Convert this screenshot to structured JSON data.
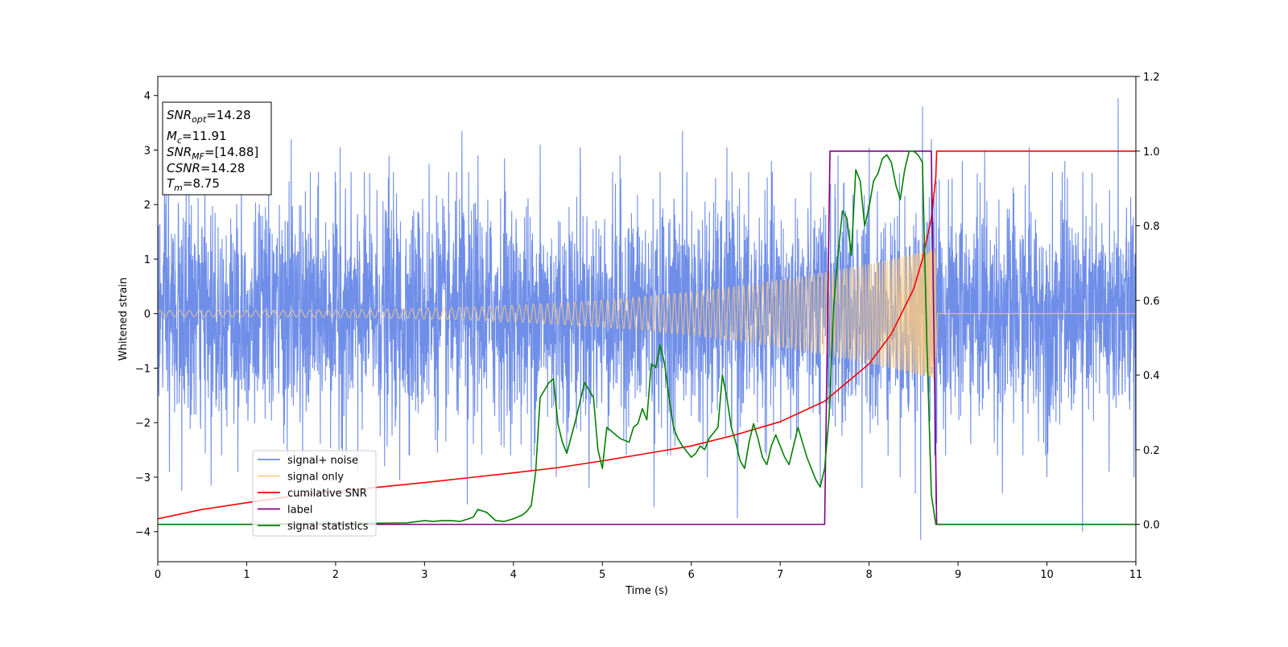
{
  "chart_data": {
    "type": "line",
    "xlabel": "Time (s)",
    "ylabel": "Whitened strain",
    "y2label": "",
    "xlim": [
      0,
      11
    ],
    "ylim": [
      -4.55,
      4.35
    ],
    "y2lim": [
      -0.1,
      1.2
    ],
    "x_ticks": [
      "0",
      "1",
      "2",
      "3",
      "4",
      "5",
      "6",
      "7",
      "8",
      "9",
      "10",
      "11"
    ],
    "y_ticks": [
      "−4",
      "−3",
      "−2",
      "−1",
      "0",
      "1",
      "2",
      "3",
      "4"
    ],
    "y2_ticks": [
      "0.0",
      "0.2",
      "0.4",
      "0.6",
      "0.8",
      "1.0",
      "1.2"
    ],
    "grid": false,
    "legend_position": "lower-left",
    "legend": [
      {
        "label": "signal+ noise",
        "color": "#6f8ee8"
      },
      {
        "label": "signal only",
        "color": "#ffcc80"
      },
      {
        "label": "cumilative SNR",
        "color": "#ff0000"
      },
      {
        "label": "label",
        "color": "#800080"
      },
      {
        "label": "signal statistics",
        "color": "#008000"
      }
    ],
    "info_box": {
      "snr_opt": {
        "sym": "SNR",
        "sub": "opt",
        "value": "=14.28"
      },
      "mc": {
        "sym": "M",
        "sub": "c",
        "value": "=11.91"
      },
      "snr_mf": {
        "sym": "SNR",
        "sub": "MF",
        "value": "=[14.88]"
      },
      "csnr": {
        "sym": "CSNR",
        "sub": "",
        "value": "=14.28"
      },
      "tm": {
        "sym": "T",
        "sub": "m",
        "value": "=8.75"
      }
    },
    "merger_time": 8.75,
    "series": [
      {
        "name": "signal+ noise",
        "axis": "left",
        "color": "#6f8ee8",
        "description_type": "noise",
        "noise_band": [
          -2.0,
          2.0
        ],
        "spikes": [
          [
            0.12,
            2.9
          ],
          [
            0.13,
            -2.9
          ],
          [
            0.27,
            -3.25
          ],
          [
            0.6,
            3.1
          ],
          [
            0.6,
            -3.15
          ],
          [
            0.9,
            -2.9
          ],
          [
            0.94,
            2.8
          ],
          [
            1.5,
            3.2
          ],
          [
            1.63,
            -3.0
          ],
          [
            2.05,
            3.05
          ],
          [
            2.25,
            -2.9
          ],
          [
            2.55,
            -2.8
          ],
          [
            2.6,
            2.9
          ],
          [
            2.72,
            -3.05
          ],
          [
            3.05,
            2.75
          ],
          [
            3.42,
            3.35
          ],
          [
            3.48,
            -3.5
          ],
          [
            3.6,
            2.9
          ],
          [
            3.9,
            2.85
          ],
          [
            4.2,
            -2.9
          ],
          [
            4.3,
            3.1
          ],
          [
            4.48,
            -3.0
          ],
          [
            4.75,
            3.05
          ],
          [
            4.85,
            -3.2
          ],
          [
            5.2,
            2.9
          ],
          [
            5.58,
            -3.55
          ],
          [
            5.9,
            3.35
          ],
          [
            6.18,
            -3.0
          ],
          [
            6.4,
            3.05
          ],
          [
            6.52,
            -3.75
          ],
          [
            6.9,
            2.8
          ],
          [
            7.45,
            -3.15
          ],
          [
            7.65,
            2.9
          ],
          [
            7.92,
            -3.2
          ],
          [
            8.0,
            3.05
          ],
          [
            8.35,
            -3.0
          ],
          [
            8.52,
            -3.3
          ],
          [
            8.6,
            3.8
          ],
          [
            8.58,
            -4.15
          ],
          [
            8.7,
            3.2
          ],
          [
            8.75,
            -3.5
          ],
          [
            9.05,
            2.8
          ],
          [
            9.3,
            3.0
          ],
          [
            9.5,
            -3.3
          ],
          [
            9.8,
            3.05
          ],
          [
            10.0,
            -3.0
          ],
          [
            10.2,
            2.8
          ],
          [
            10.4,
            -4.0
          ],
          [
            10.7,
            -2.9
          ],
          [
            10.8,
            3.95
          ],
          [
            10.98,
            -3.0
          ]
        ]
      },
      {
        "name": "signal only",
        "axis": "left",
        "color": "#ffcc80",
        "description_type": "chirp",
        "amplitude_start": 0.06,
        "amplitude_end": 1.2,
        "t_end": 8.75
      },
      {
        "name": "cumilative SNR",
        "axis": "right",
        "color": "#ff0000",
        "x": [
          0,
          0.5,
          1,
          1.5,
          2,
          2.5,
          3,
          3.5,
          4,
          4.5,
          5,
          5.5,
          6,
          6.5,
          7,
          7.5,
          8,
          8.25,
          8.5,
          8.6,
          8.7,
          8.75,
          8.76,
          9,
          10,
          11
        ],
        "y": [
          0.015,
          0.04,
          0.058,
          0.075,
          0.088,
          0.1,
          0.112,
          0.125,
          0.138,
          0.152,
          0.17,
          0.19,
          0.21,
          0.24,
          0.275,
          0.33,
          0.43,
          0.51,
          0.63,
          0.71,
          0.82,
          0.93,
          1.0,
          1.0,
          1.0,
          1.0
        ]
      },
      {
        "name": "label",
        "axis": "right",
        "color": "#800080",
        "x": [
          0,
          7.5,
          7.56,
          8.7,
          8.76,
          11
        ],
        "y": [
          0,
          0,
          1,
          1,
          0,
          0
        ]
      },
      {
        "name": "signal statistics",
        "axis": "right",
        "color": "#008000",
        "x": [
          0,
          0.5,
          1,
          1.5,
          2,
          2.5,
          2.8,
          3.0,
          3.1,
          3.2,
          3.3,
          3.4,
          3.5,
          3.55,
          3.6,
          3.7,
          3.8,
          3.9,
          4.0,
          4.1,
          4.15,
          4.2,
          4.25,
          4.3,
          4.4,
          4.45,
          4.5,
          4.55,
          4.6,
          4.7,
          4.8,
          4.9,
          4.95,
          5.0,
          5.05,
          5.1,
          5.2,
          5.3,
          5.35,
          5.4,
          5.45,
          5.5,
          5.55,
          5.6,
          5.65,
          5.7,
          5.75,
          5.8,
          5.85,
          5.9,
          6.0,
          6.05,
          6.1,
          6.15,
          6.2,
          6.3,
          6.35,
          6.4,
          6.45,
          6.5,
          6.55,
          6.6,
          6.65,
          6.7,
          6.75,
          6.8,
          6.85,
          6.9,
          6.95,
          7.0,
          7.05,
          7.1,
          7.15,
          7.2,
          7.25,
          7.3,
          7.35,
          7.4,
          7.45,
          7.5,
          7.55,
          7.6,
          7.65,
          7.7,
          7.75,
          7.8,
          7.85,
          7.9,
          7.95,
          8.0,
          8.05,
          8.1,
          8.15,
          8.2,
          8.25,
          8.3,
          8.35,
          8.4,
          8.45,
          8.5,
          8.55,
          8.6,
          8.65,
          8.7,
          8.75,
          8.8,
          9.0,
          10.0,
          11.0
        ],
        "y": [
          0,
          0.0,
          0.0,
          0.002,
          0.003,
          0.003,
          0.004,
          0.01,
          0.008,
          0.01,
          0.01,
          0.008,
          0.015,
          0.02,
          0.04,
          0.032,
          0.01,
          0.008,
          0.015,
          0.025,
          0.035,
          0.05,
          0.14,
          0.34,
          0.38,
          0.39,
          0.27,
          0.22,
          0.19,
          0.28,
          0.38,
          0.34,
          0.2,
          0.15,
          0.26,
          0.25,
          0.23,
          0.22,
          0.26,
          0.27,
          0.31,
          0.28,
          0.43,
          0.42,
          0.48,
          0.43,
          0.34,
          0.26,
          0.23,
          0.21,
          0.18,
          0.19,
          0.21,
          0.2,
          0.23,
          0.26,
          0.4,
          0.34,
          0.26,
          0.22,
          0.17,
          0.15,
          0.22,
          0.27,
          0.23,
          0.18,
          0.16,
          0.21,
          0.24,
          0.21,
          0.18,
          0.16,
          0.21,
          0.26,
          0.22,
          0.18,
          0.15,
          0.12,
          0.1,
          0.15,
          0.29,
          0.58,
          0.72,
          0.84,
          0.82,
          0.72,
          0.95,
          0.92,
          0.8,
          0.85,
          0.92,
          0.94,
          0.98,
          0.99,
          0.97,
          0.91,
          0.87,
          0.95,
          1.0,
          1.0,
          0.99,
          0.97,
          0.48,
          0.08,
          0.0,
          0.0,
          0.0,
          0.0,
          0.0
        ]
      }
    ]
  }
}
